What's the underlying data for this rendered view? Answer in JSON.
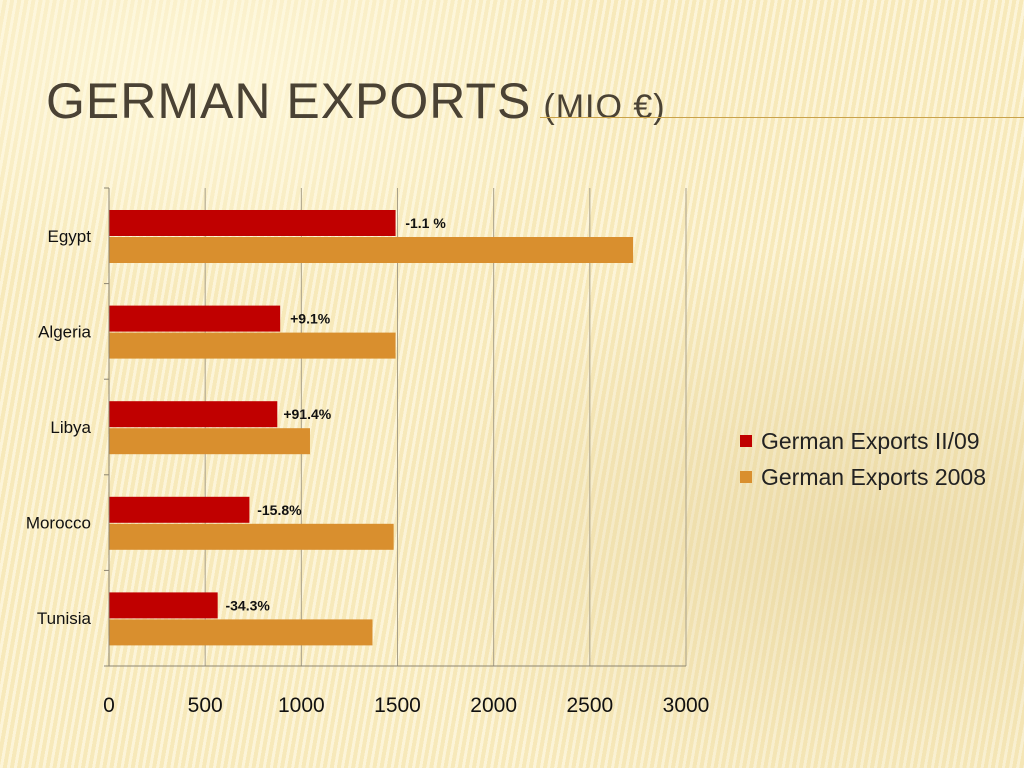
{
  "slide": {
    "title": "GERMAN EXPORTS",
    "title_suffix": "(MIO €)"
  },
  "chart_data": {
    "type": "bar",
    "orientation": "horizontal",
    "categories": [
      "Egypt",
      "Algeria",
      "Libya",
      "Morocco",
      "Tunisia"
    ],
    "series": [
      {
        "name": "German Exports II/09",
        "color": "#c00000",
        "values": [
          1490,
          890,
          875,
          730,
          565
        ]
      },
      {
        "name": "German Exports 2008",
        "color": "#d98f2e",
        "values": [
          2725,
          1490,
          1045,
          1480,
          1370
        ]
      }
    ],
    "annotations": [
      "-1.1 %",
      "+9.1%",
      "+91.4%",
      "-15.8%",
      "-34.3%"
    ],
    "xlim": [
      0,
      3000
    ],
    "x_ticks": [
      "0",
      "500",
      "1000",
      "1500",
      "2000",
      "2500",
      "3000"
    ],
    "grid": "vertical",
    "legend": "right"
  }
}
